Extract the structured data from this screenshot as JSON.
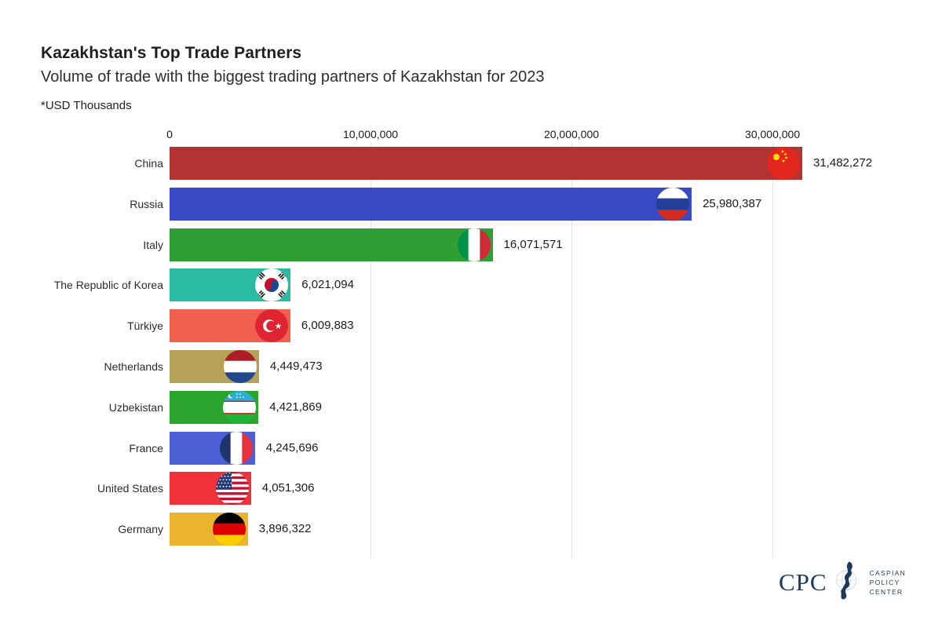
{
  "header": {
    "title": "Kazakhstan's Top Trade Partners",
    "subtitle": "Volume of trade with the biggest trading partners of Kazakhstan for 2023",
    "units_note": "*USD Thousands"
  },
  "chart_data": {
    "type": "bar",
    "orientation": "horizontal",
    "title": "Kazakhstan's Top Trade Partners",
    "subtitle": "Volume of trade with the biggest trading partners of Kazakhstan for 2023",
    "units_note": "*USD Thousands",
    "grid": "vertical-light-gray",
    "xlim": [
      0,
      31482272
    ],
    "x_ticks": [
      {
        "label": "0",
        "value": 0
      },
      {
        "label": "10,000,000",
        "value": 10000000
      },
      {
        "label": "20,000,000",
        "value": 20000000
      },
      {
        "label": "30,000,000",
        "value": 30000000
      }
    ],
    "categories": [
      "China",
      "Russia",
      "Italy",
      "The Republic of Korea",
      "Türkiye",
      "Netherlands",
      "Uzbekistan",
      "France",
      "United States",
      "Germany"
    ],
    "values": [
      31482272,
      25980387,
      16071571,
      6021094,
      6009883,
      4449473,
      4421869,
      4245696,
      4051306,
      3896322
    ],
    "value_labels": [
      "31,482,272",
      "25,980,387",
      "16,071,571",
      "6,021,094",
      "6,009,883",
      "4,449,473",
      "4,421,869",
      "4,245,696",
      "4,051,306",
      "3,896,322"
    ],
    "bar_colors": [
      "#b23432",
      "#3a49c6",
      "#2f9e35",
      "#2bbaa2",
      "#f0604d",
      "#b5a256",
      "#2ca52f",
      "#4c5fd4",
      "#f0333b",
      "#ebb42f"
    ],
    "flag_icons": [
      "china-flag-icon",
      "russia-flag-icon",
      "italy-flag-icon",
      "south-korea-flag-icon",
      "turkiye-flag-icon",
      "netherlands-flag-icon",
      "uzbekistan-flag-icon",
      "france-flag-icon",
      "united-states-flag-icon",
      "germany-flag-icon"
    ]
  },
  "footer": {
    "logo_acronym": "CPC",
    "logo_caption_lines": [
      "CASPIAN",
      "POLICY",
      "CENTER"
    ],
    "logo_color": "#1d3a5e"
  }
}
